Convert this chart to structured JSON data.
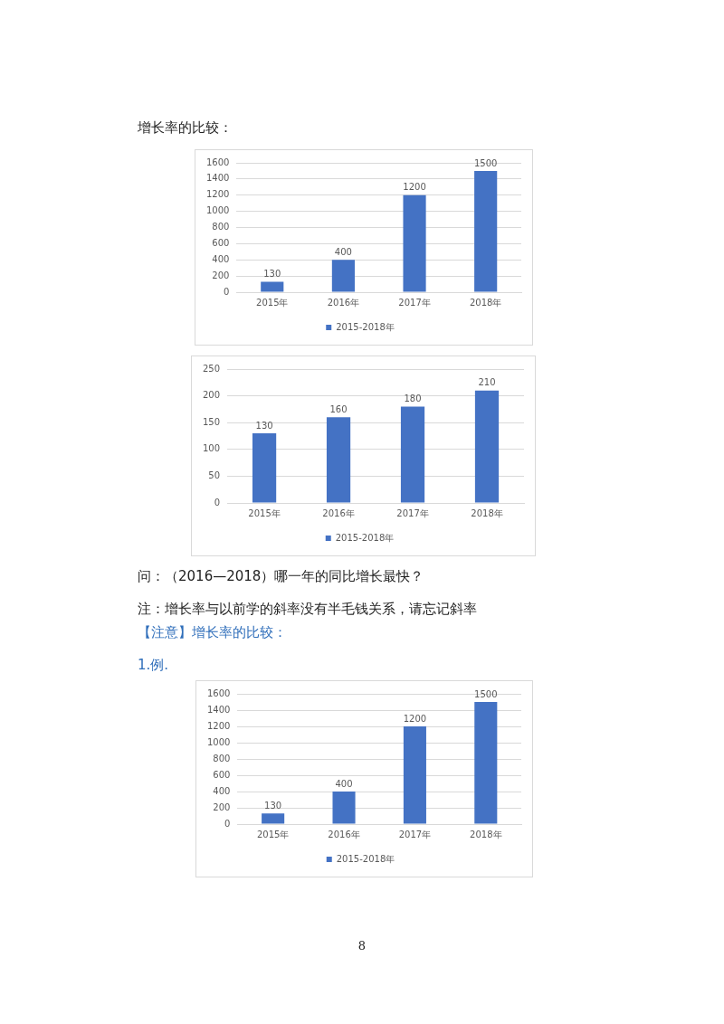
{
  "chart_data": [
    {
      "type": "bar",
      "title": "增长率的比较：",
      "categories": [
        "2015年",
        "2016年",
        "2017年",
        "2018年"
      ],
      "series": [
        {
          "name": "2015-2018年",
          "color": "#4472c4",
          "values": [
            130,
            400,
            1200,
            1500
          ]
        }
      ],
      "ylim": [
        0,
        1600
      ],
      "yticks": [
        0,
        200,
        400,
        600,
        800,
        1000,
        1200,
        1400,
        1600
      ],
      "grid": "y",
      "legend": "bottom",
      "data_labels": true
    },
    {
      "type": "bar",
      "categories": [
        "2015年",
        "2016年",
        "2017年",
        "2018年"
      ],
      "series": [
        {
          "name": "2015-2018年",
          "color": "#4472c4",
          "values": [
            130,
            160,
            180,
            210
          ]
        }
      ],
      "ylim": [
        0,
        250
      ],
      "yticks": [
        0,
        50,
        100,
        150,
        200,
        250
      ],
      "grid": "y",
      "legend": "bottom",
      "data_labels": true,
      "annotations": [
        "问：（2016—2018）哪一年的同比增长最快？",
        "注：增长率与以前学的斜率没有半毛钱关系，请忘记斜率"
      ]
    },
    {
      "type": "bar",
      "title": "【注意】增长率的比较：",
      "subtitle": "1.例.",
      "categories": [
        "2015年",
        "2016年",
        "2017年",
        "2018年"
      ],
      "series": [
        {
          "name": "2015-2018年",
          "color": "#4472c4",
          "values": [
            130,
            400,
            1200,
            1500
          ]
        }
      ],
      "ylim": [
        0,
        1600
      ],
      "yticks": [
        0,
        200,
        400,
        600,
        800,
        1000,
        1200,
        1400,
        1600
      ],
      "grid": "y",
      "legend": "bottom",
      "data_labels": true,
      "annotations": [
        "8"
      ]
    }
  ]
}
